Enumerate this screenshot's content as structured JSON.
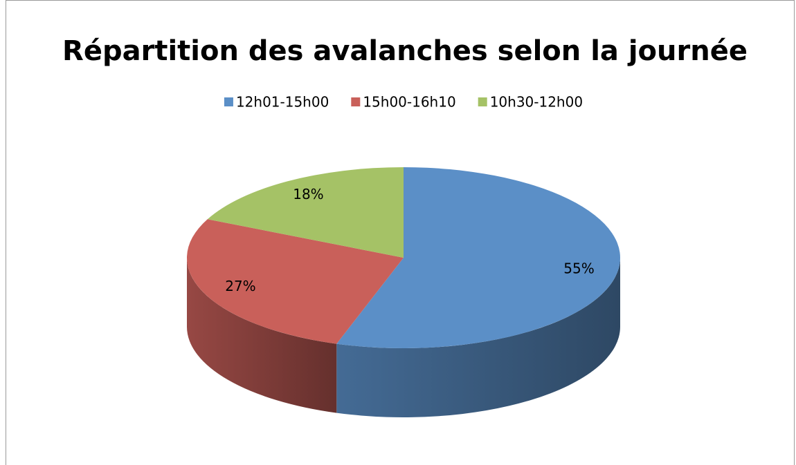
{
  "chart_data": {
    "type": "pie3d",
    "title": "Répartition des avalanches selon la journée",
    "categories": [
      "12h01-15h00",
      "15h00-16h10",
      "10h30-12h00"
    ],
    "values": [
      55,
      27,
      18
    ],
    "value_labels": [
      "55%",
      "27%",
      "18%"
    ],
    "colors": [
      "#5b8fc7",
      "#c9605a",
      "#a5c266"
    ],
    "legend": "top"
  }
}
